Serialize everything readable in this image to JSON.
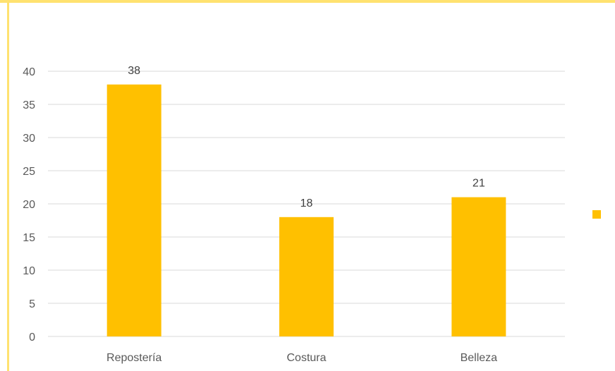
{
  "colors": {
    "bar": "#FFC000",
    "gridline": "#D9D9D9",
    "frame": "#FFE270",
    "legend_marker": "#FFC000"
  },
  "chart_data": {
    "type": "bar",
    "title": "",
    "xlabel": "",
    "ylabel": "",
    "categories": [
      "Repostería",
      "Costura",
      "Belleza"
    ],
    "values": [
      38,
      18,
      21
    ],
    "data_labels": [
      "38",
      "18",
      "21"
    ],
    "ylim": [
      0,
      40
    ],
    "y_ticks": [
      0,
      5,
      10,
      15,
      20,
      25,
      30,
      35,
      40
    ],
    "y_tick_labels": [
      "0",
      "5",
      "10",
      "15",
      "20",
      "25",
      "30",
      "35",
      "40"
    ],
    "grid": true,
    "legend": {
      "placement": "right",
      "entries": [
        ""
      ]
    }
  }
}
